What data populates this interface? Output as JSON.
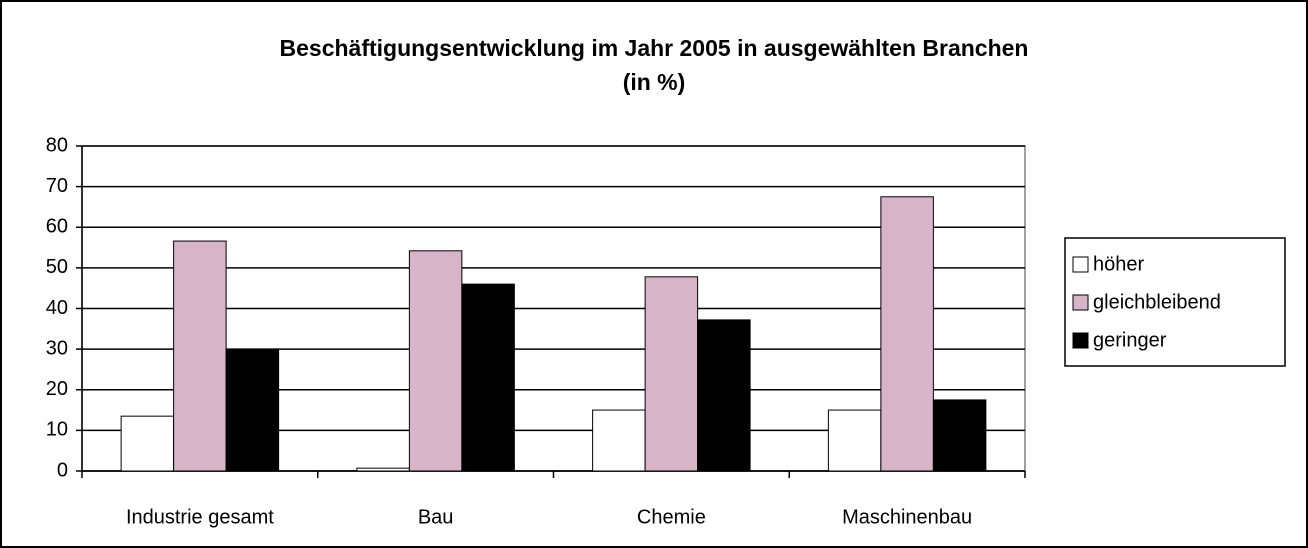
{
  "chart_data": {
    "type": "bar",
    "title": [
      "Beschäftigungsentwicklung im Jahr 2005 in ausgewählten Branchen",
      "(in %)"
    ],
    "categories": [
      "Industrie gesamt",
      "Bau",
      "Chemie",
      "Maschinenbau"
    ],
    "series": [
      {
        "name": "höher",
        "color": "#ffffff",
        "values": [
          13.5,
          0.7,
          15,
          15
        ]
      },
      {
        "name": "gleichbleibend",
        "color": "#d8b4c8",
        "values": [
          56.6,
          54.2,
          47.8,
          67.5
        ]
      },
      {
        "name": "geringer",
        "color": "#000000",
        "values": [
          30,
          46,
          37.2,
          17.5
        ]
      }
    ],
    "ylim": [
      0,
      80
    ],
    "yticks": [
      0,
      10,
      20,
      30,
      40,
      50,
      60,
      70,
      80
    ],
    "grid": true,
    "legend": "right"
  }
}
